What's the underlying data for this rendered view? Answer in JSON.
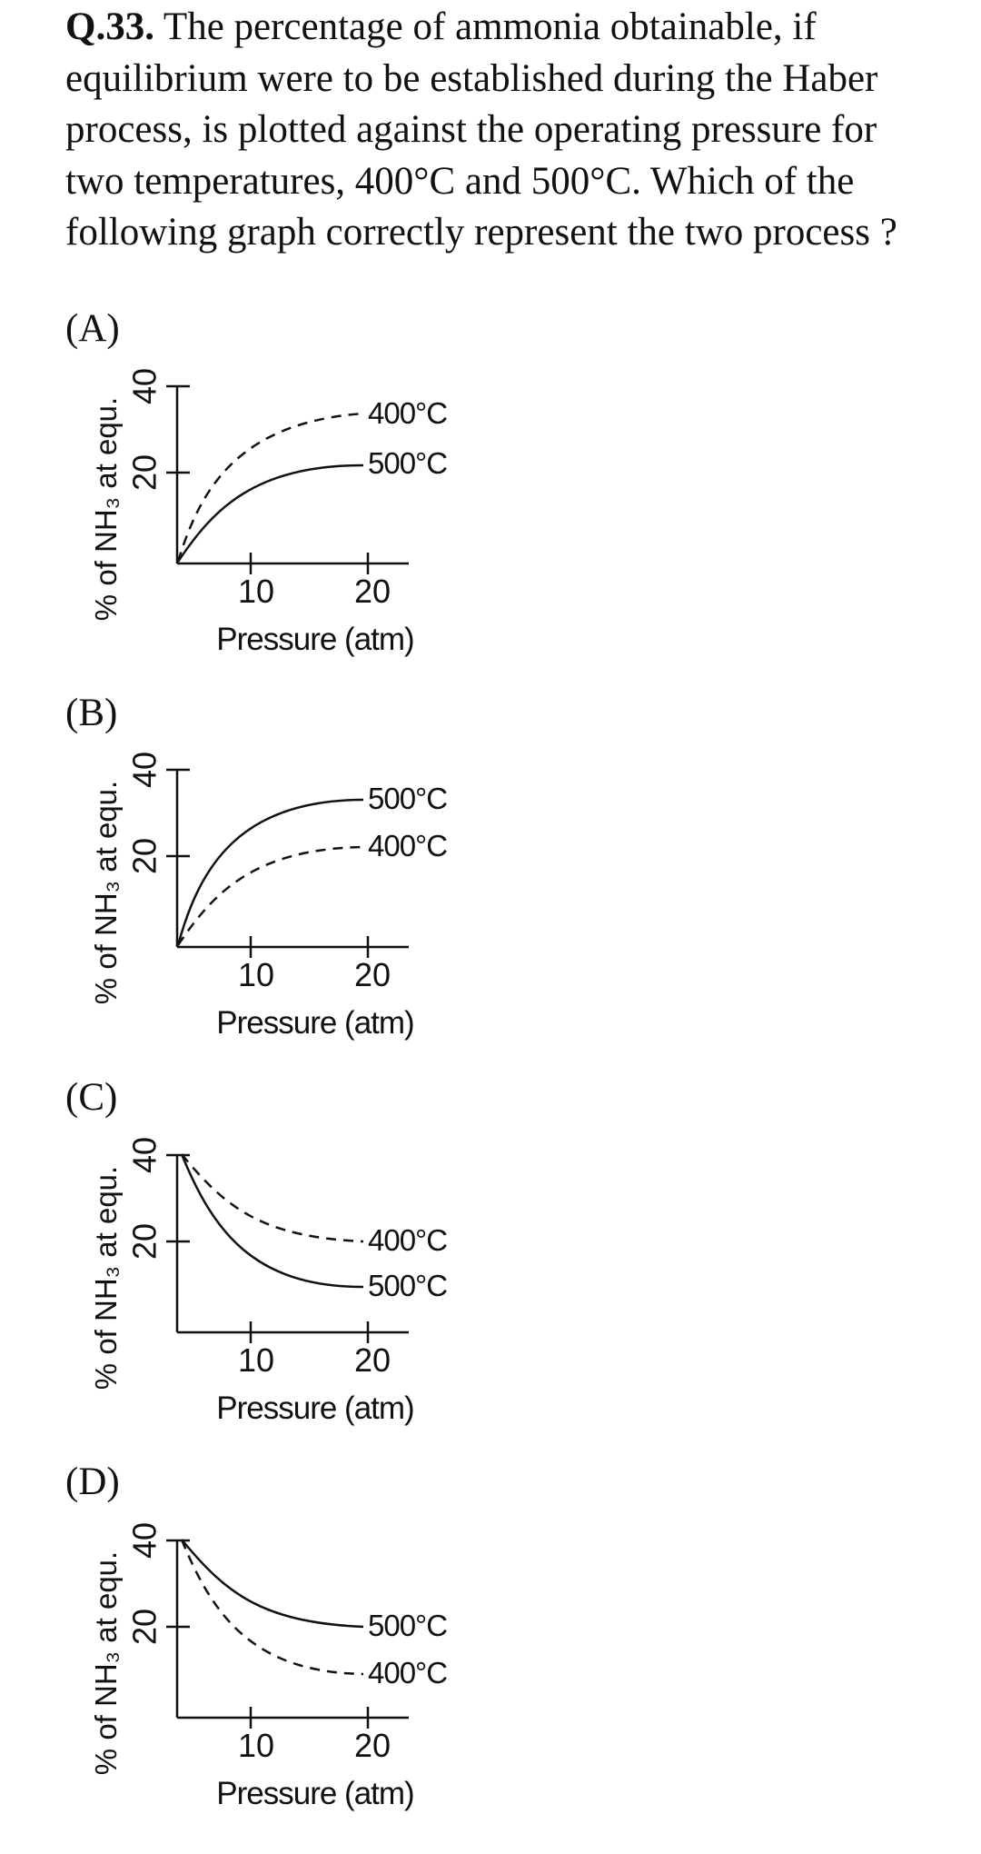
{
  "question": {
    "number": "Q.33.",
    "text": " The percentage of ammonia obtainable, if equilibrium were to be established during the Haber process, is plotted against the operating pressure for two temperatures, 400°C and 500°C. Which of the following graph correctly represent the two process ?"
  },
  "options": [
    {
      "label": "(A)",
      "y_axis_label": "% of NH₃ at equ.",
      "x_axis_label": "Pressure (atm)",
      "y_ticks": [
        "40",
        "20"
      ],
      "x_ticks": [
        "10",
        "20"
      ],
      "curves": [
        {
          "name": "400°C",
          "style": "dashed",
          "trend": "increasing",
          "level": "upper"
        },
        {
          "name": "500°C",
          "style": "solid",
          "trend": "increasing",
          "level": "lower"
        }
      ]
    },
    {
      "label": "(B)",
      "y_axis_label": "% of NH₃ at equ.",
      "x_axis_label": "Pressure (atm)",
      "y_ticks": [
        "40",
        "20"
      ],
      "x_ticks": [
        "10",
        "20"
      ],
      "curves": [
        {
          "name": "500°C",
          "style": "solid",
          "trend": "increasing",
          "level": "upper"
        },
        {
          "name": "400°C",
          "style": "dashed",
          "trend": "increasing",
          "level": "lower"
        }
      ]
    },
    {
      "label": "(C)",
      "y_axis_label": "% of NH₃ at equ.",
      "x_axis_label": "Pressure (atm)",
      "y_ticks": [
        "40",
        "20"
      ],
      "x_ticks": [
        "10",
        "20"
      ],
      "curves": [
        {
          "name": "400°C",
          "style": "dashed",
          "trend": "decreasing",
          "level": "upper"
        },
        {
          "name": "500°C",
          "style": "solid",
          "trend": "decreasing",
          "level": "lower"
        }
      ]
    },
    {
      "label": "(D)",
      "y_axis_label": "% of NH₃ at equ.",
      "x_axis_label": "Pressure (atm)",
      "y_ticks": [
        "40",
        "20"
      ],
      "x_ticks": [
        "10",
        "20"
      ],
      "curves": [
        {
          "name": "500°C",
          "style": "solid",
          "trend": "decreasing",
          "level": "upper"
        },
        {
          "name": "400°C",
          "style": "dashed",
          "trend": "decreasing",
          "level": "lower"
        }
      ]
    }
  ]
}
